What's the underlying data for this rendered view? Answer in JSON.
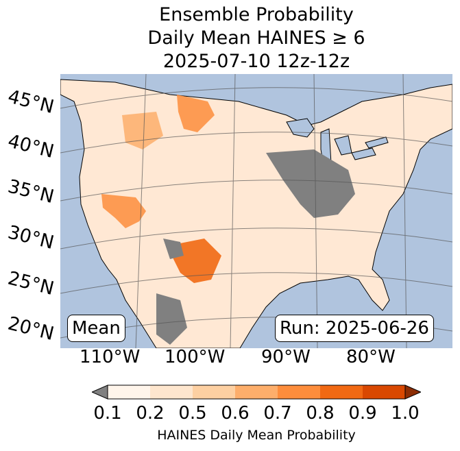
{
  "title": {
    "line1": "Ensemble Probability",
    "line2": "Daily Mean HAINES ≥ 6",
    "line3": "2025-07-10 12z-12z"
  },
  "map": {
    "lat_labels": [
      "45°N",
      "40°N",
      "35°N",
      "30°N",
      "25°N",
      "20°N"
    ],
    "lon_labels": [
      "110°W",
      "100°W",
      "90°W",
      "80°W"
    ],
    "stat_label": "Mean",
    "run_label": "Run: 2025-06-26",
    "colors": {
      "ocean": "#b0c4de",
      "missing": "#808080",
      "land": "#ffe8d4"
    }
  },
  "colorbar": {
    "label": "HAINES Daily Mean Probability",
    "ticks": [
      "0.1",
      "0.2",
      "0.5",
      "0.6",
      "0.7",
      "0.8",
      "0.9",
      "1.0"
    ],
    "colors": [
      "#fff5eb",
      "#fee6ce",
      "#fdd0a2",
      "#fdae6b",
      "#fd8d3c",
      "#f16913",
      "#d94801",
      "#8c2d04"
    ],
    "under_color": "#808080"
  }
}
